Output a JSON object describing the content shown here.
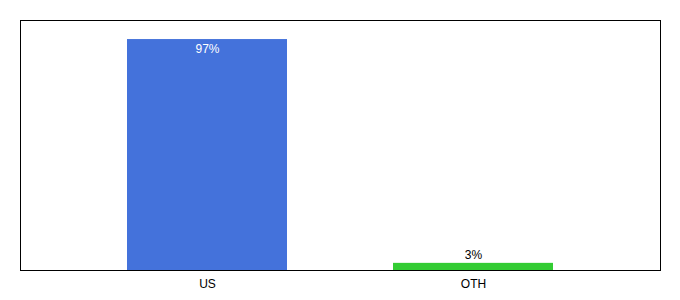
{
  "chart_data": {
    "type": "bar",
    "categories": [
      "US",
      "OTH"
    ],
    "values": [
      97,
      3
    ],
    "value_labels": [
      "97%",
      "3%"
    ],
    "colors": [
      "#4472db",
      "#33cc33"
    ],
    "ylim": [
      0,
      105
    ],
    "tick_labels": "x",
    "data_labels": true
  }
}
